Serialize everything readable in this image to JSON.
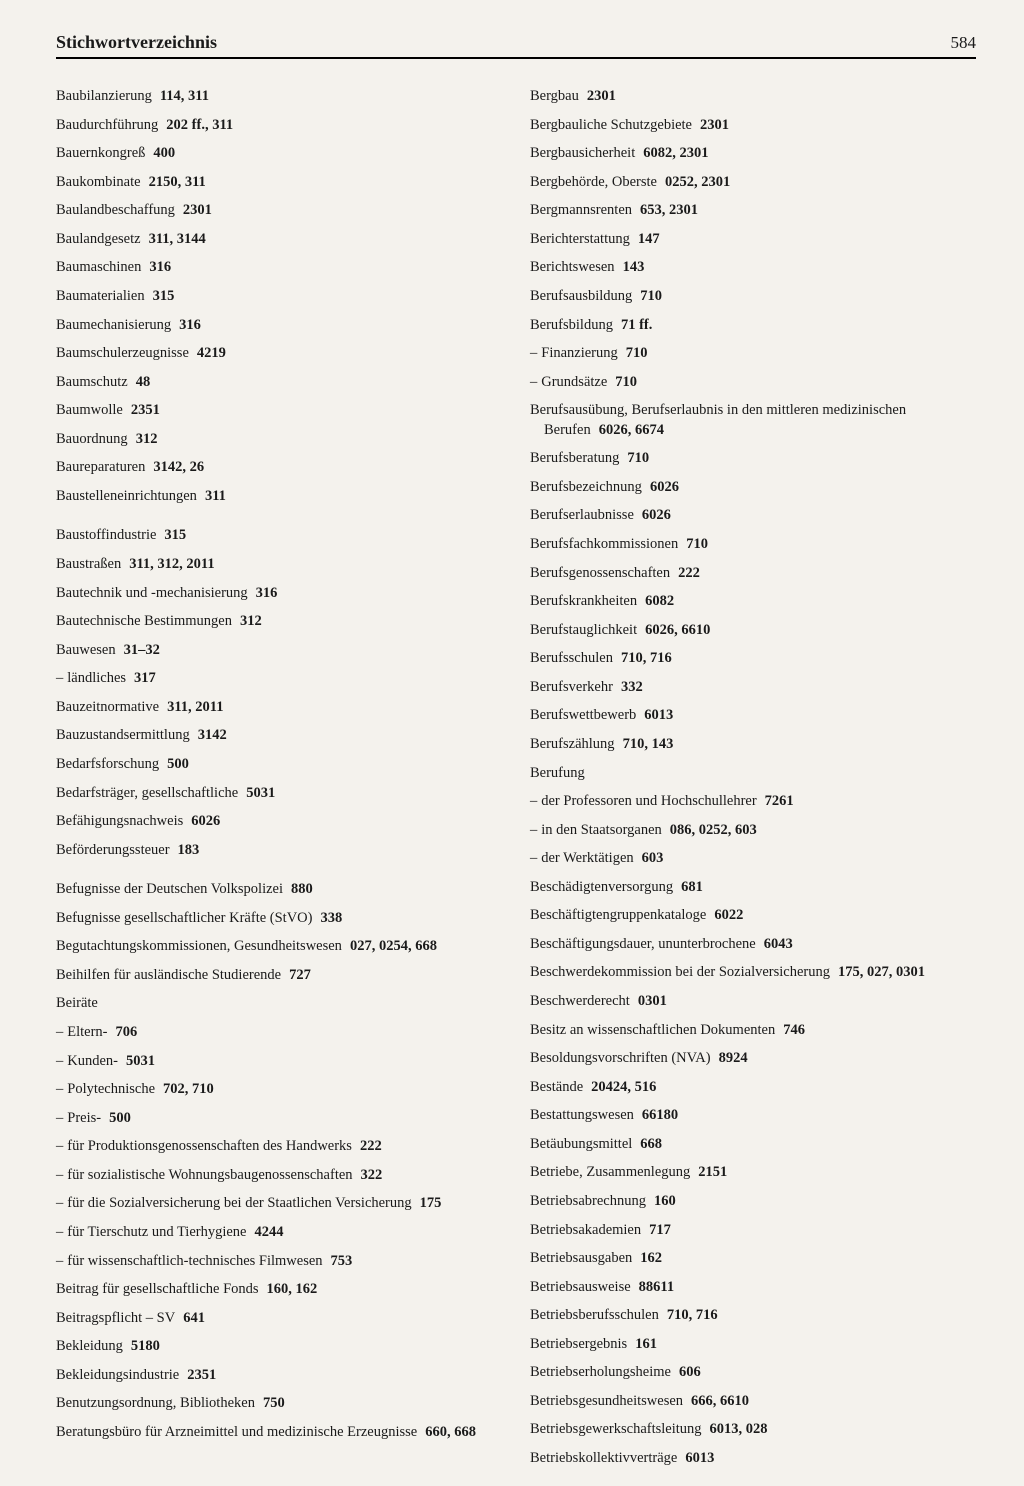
{
  "header": {
    "title": "Stichwortverzeichnis",
    "pageNumber": "584"
  },
  "left": [
    {
      "term": "Baubilanzierung",
      "refs": "114, 311"
    },
    {
      "term": "Baudurchführung",
      "refs": "202 ff., 311"
    },
    {
      "term": "Bauernkongreß",
      "refs": "400"
    },
    {
      "term": "Baukombinate",
      "refs": "2150, 311"
    },
    {
      "term": "Baulandbeschaffung",
      "refs": "2301"
    },
    {
      "term": "Baulandgesetz",
      "refs": "311, 3144"
    },
    {
      "term": "Baumaschinen",
      "refs": "316"
    },
    {
      "term": "Baumaterialien",
      "refs": "315"
    },
    {
      "term": "Baumechanisierung",
      "refs": "316"
    },
    {
      "term": "Baumschulerzeugnisse",
      "refs": "4219"
    },
    {
      "term": "Baumschutz",
      "refs": "48"
    },
    {
      "term": "Baumwolle",
      "refs": "2351"
    },
    {
      "term": "Bauordnung",
      "refs": "312"
    },
    {
      "term": "Baureparaturen",
      "refs": "3142, 26"
    },
    {
      "term": "Baustelleneinrichtungen",
      "refs": "311"
    },
    {
      "term": "Baustoffindustrie",
      "refs": "315",
      "gap": true
    },
    {
      "term": "Baustraßen",
      "refs": "311, 312, 2011"
    },
    {
      "term": "Bautechnik und -mechanisierung",
      "refs": "316"
    },
    {
      "term": "Bautechnische Bestimmungen",
      "refs": "312"
    },
    {
      "term": "Bauwesen",
      "refs": "31–32"
    },
    {
      "term": "ländliches",
      "refs": "317",
      "sub": true
    },
    {
      "term": "Bauzeitnormative",
      "refs": "311, 2011"
    },
    {
      "term": "Bauzustandsermittlung",
      "refs": "3142"
    },
    {
      "term": "Bedarfsforschung",
      "refs": "500"
    },
    {
      "term": "Bedarfsträger, gesellschaftliche",
      "refs": "5031"
    },
    {
      "term": "Befähigungsnachweis",
      "refs": "6026"
    },
    {
      "term": "Beförderungssteuer",
      "refs": "183"
    },
    {
      "term": "Befugnisse der Deutschen Volkspolizei",
      "refs": "880",
      "gap": true
    },
    {
      "term": "Befugnisse gesellschaftlicher Kräfte (StVO)",
      "refs": "338"
    },
    {
      "term": "Begutachtungskommissionen, Gesundheitswesen",
      "refs": "027, 0254, 668"
    },
    {
      "term": "Beihilfen für ausländische Studierende",
      "refs": "727"
    },
    {
      "term": "Beiräte",
      "refs": ""
    },
    {
      "term": "Eltern-",
      "refs": "706",
      "sub": true
    },
    {
      "term": "Kunden-",
      "refs": "5031",
      "sub": true
    },
    {
      "term": "Polytechnische",
      "refs": "702, 710",
      "sub": true
    },
    {
      "term": "Preis-",
      "refs": "500",
      "sub": true
    },
    {
      "term": "für Produktionsgenossenschaften des Handwerks",
      "refs": "222",
      "sub": true
    },
    {
      "term": "für sozialistische Wohnungsbaugenossenschaften",
      "refs": "322",
      "sub": true
    },
    {
      "term": "für die Sozialversicherung bei der Staatlichen Versicherung",
      "refs": "175",
      "sub": true
    },
    {
      "term": "für Tierschutz und Tierhygiene",
      "refs": "4244",
      "sub": true
    },
    {
      "term": "für wissenschaftlich-technisches Filmwesen",
      "refs": "753",
      "sub": true
    },
    {
      "term": "Beitrag für gesellschaftliche Fonds",
      "refs": "160, 162"
    },
    {
      "term": "Beitragspflicht – SV",
      "refs": "641"
    },
    {
      "term": "Bekleidung",
      "refs": "5180"
    },
    {
      "term": "Bekleidungsindustrie",
      "refs": "2351"
    },
    {
      "term": "Benutzungsordnung, Bibliotheken",
      "refs": "750"
    },
    {
      "term": "Beratungsbüro für Arzneimittel und medizinische Erzeugnisse",
      "refs": "660, 668"
    }
  ],
  "right": [
    {
      "term": "Bergbau",
      "refs": "2301"
    },
    {
      "term": "Bergbauliche Schutzgebiete",
      "refs": "2301"
    },
    {
      "term": "Bergbausicherheit",
      "refs": "6082, 2301"
    },
    {
      "term": "Bergbehörde, Oberste",
      "refs": "0252, 2301"
    },
    {
      "term": "Bergmannsrenten",
      "refs": "653, 2301"
    },
    {
      "term": "Berichterstattung",
      "refs": "147"
    },
    {
      "term": "Berichtswesen",
      "refs": "143"
    },
    {
      "term": "Berufsausbildung",
      "refs": "710"
    },
    {
      "term": "Berufsbildung",
      "refs": "71 ff."
    },
    {
      "term": "Finanzierung",
      "refs": "710",
      "sub": true
    },
    {
      "term": "Grundsätze",
      "refs": "710",
      "sub": true
    },
    {
      "term": "Berufsausübung, Berufserlaubnis in den mittleren medizinischen Berufen",
      "refs": "6026, 6674"
    },
    {
      "term": "Berufsberatung",
      "refs": "710"
    },
    {
      "term": "Berufsbezeichnung",
      "refs": "6026"
    },
    {
      "term": "Berufserlaubnisse",
      "refs": "6026"
    },
    {
      "term": "Berufsfachkommissionen",
      "refs": "710"
    },
    {
      "term": "Berufsgenossenschaften",
      "refs": "222"
    },
    {
      "term": "Berufskrankheiten",
      "refs": "6082"
    },
    {
      "term": "Berufstauglichkeit",
      "refs": "6026, 6610"
    },
    {
      "term": "Berufsschulen",
      "refs": "710, 716"
    },
    {
      "term": "Berufsverkehr",
      "refs": "332"
    },
    {
      "term": "Berufswettbewerb",
      "refs": "6013"
    },
    {
      "term": "Berufszählung",
      "refs": "710, 143"
    },
    {
      "term": "Berufung",
      "refs": ""
    },
    {
      "term": "der Professoren und Hochschullehrer",
      "refs": "7261",
      "sub": true
    },
    {
      "term": "in den Staatsorganen",
      "refs": "086, 0252, 603",
      "sub": true
    },
    {
      "term": "der Werktätigen",
      "refs": "603",
      "sub": true
    },
    {
      "term": "Beschädigtenversorgung",
      "refs": "681"
    },
    {
      "term": "Beschäftigtengruppenkataloge",
      "refs": "6022"
    },
    {
      "term": "Beschäftigungsdauer, ununterbrochene",
      "refs": "6043"
    },
    {
      "term": "Beschwerdekommission bei der Sozialversicherung",
      "refs": "175, 027, 0301"
    },
    {
      "term": "Beschwerderecht",
      "refs": "0301"
    },
    {
      "term": "Besitz an wissenschaftlichen Dokumenten",
      "refs": "746"
    },
    {
      "term": "Besoldungsvorschriften (NVA)",
      "refs": "8924"
    },
    {
      "term": "Bestände",
      "refs": "20424, 516"
    },
    {
      "term": "Bestattungswesen",
      "refs": "66180"
    },
    {
      "term": "Betäubungsmittel",
      "refs": "668"
    },
    {
      "term": "Betriebe, Zusammenlegung",
      "refs": "2151"
    },
    {
      "term": "Betriebsabrechnung",
      "refs": "160"
    },
    {
      "term": "Betriebsakademien",
      "refs": "717"
    },
    {
      "term": "Betriebsausgaben",
      "refs": "162"
    },
    {
      "term": "Betriebsausweise",
      "refs": "88611"
    },
    {
      "term": "Betriebsberufsschulen",
      "refs": "710, 716"
    },
    {
      "term": "Betriebsergebnis",
      "refs": "161"
    },
    {
      "term": "Betriebserholungsheime",
      "refs": "606"
    },
    {
      "term": "Betriebsgesundheitswesen",
      "refs": "666, 6610"
    },
    {
      "term": "Betriebsgewerkschaftsleitung",
      "refs": "6013, 028"
    },
    {
      "term": "Betriebskollektivverträge",
      "refs": "6013"
    }
  ]
}
